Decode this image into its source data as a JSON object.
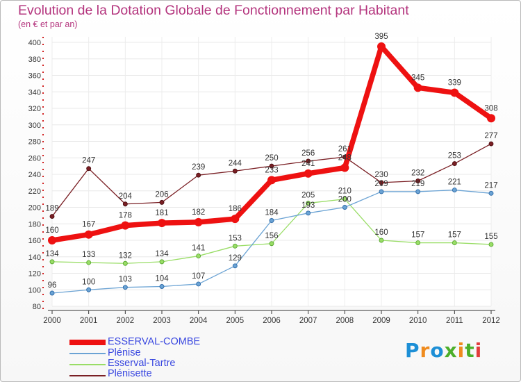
{
  "title": "Evolution de la Dotation Globale de Fonctionnement par Habitant",
  "subtitle": "(en € et par an)",
  "logo": {
    "text": "Proxiti",
    "letters": [
      "P",
      "r",
      "o",
      "x",
      "i",
      "t",
      "i"
    ],
    "colors": [
      "#1d8fd6",
      "#ef8b1e",
      "#1d8fd6",
      "#4caf2a",
      "#ef8b1e",
      "#4caf2a",
      "#e23c3c"
    ]
  },
  "chart_data": {
    "type": "line",
    "title": "Evolution de la Dotation Globale de Fonctionnement par Habitant",
    "subtitle": "(en € et par an)",
    "xlabel": "",
    "ylabel": "",
    "categories": [
      "2000",
      "2001",
      "2002",
      "2003",
      "2004",
      "2005",
      "2006",
      "2007",
      "2008",
      "2009",
      "2010",
      "2011",
      "2012"
    ],
    "ylim": [
      80,
      400
    ],
    "yticks": [
      80,
      100,
      120,
      140,
      160,
      180,
      200,
      220,
      240,
      260,
      280,
      300,
      320,
      340,
      360,
      380,
      400
    ],
    "grid": true,
    "legend_position": "bottom-left",
    "series": [
      {
        "name": "ESSERVAL-COMBE",
        "color": "#ee1111",
        "values": [
          160,
          167,
          178,
          181,
          182,
          186,
          233,
          241,
          248,
          395,
          345,
          339,
          308
        ]
      },
      {
        "name": "Plénise",
        "color": "#6ba3d4",
        "values": [
          96,
          100,
          103,
          104,
          107,
          129,
          184,
          193,
          200,
          219,
          219,
          221,
          217
        ]
      },
      {
        "name": "Esserval-Tartre",
        "color": "#99dd66",
        "values": [
          134,
          133,
          132,
          134,
          141,
          153,
          156,
          205,
          210,
          160,
          157,
          157,
          155
        ]
      },
      {
        "name": "Plénisette",
        "color": "#7a1f24",
        "values": [
          189,
          247,
          204,
          206,
          239,
          244,
          250,
          256,
          261,
          230,
          232,
          253,
          277
        ]
      }
    ]
  }
}
